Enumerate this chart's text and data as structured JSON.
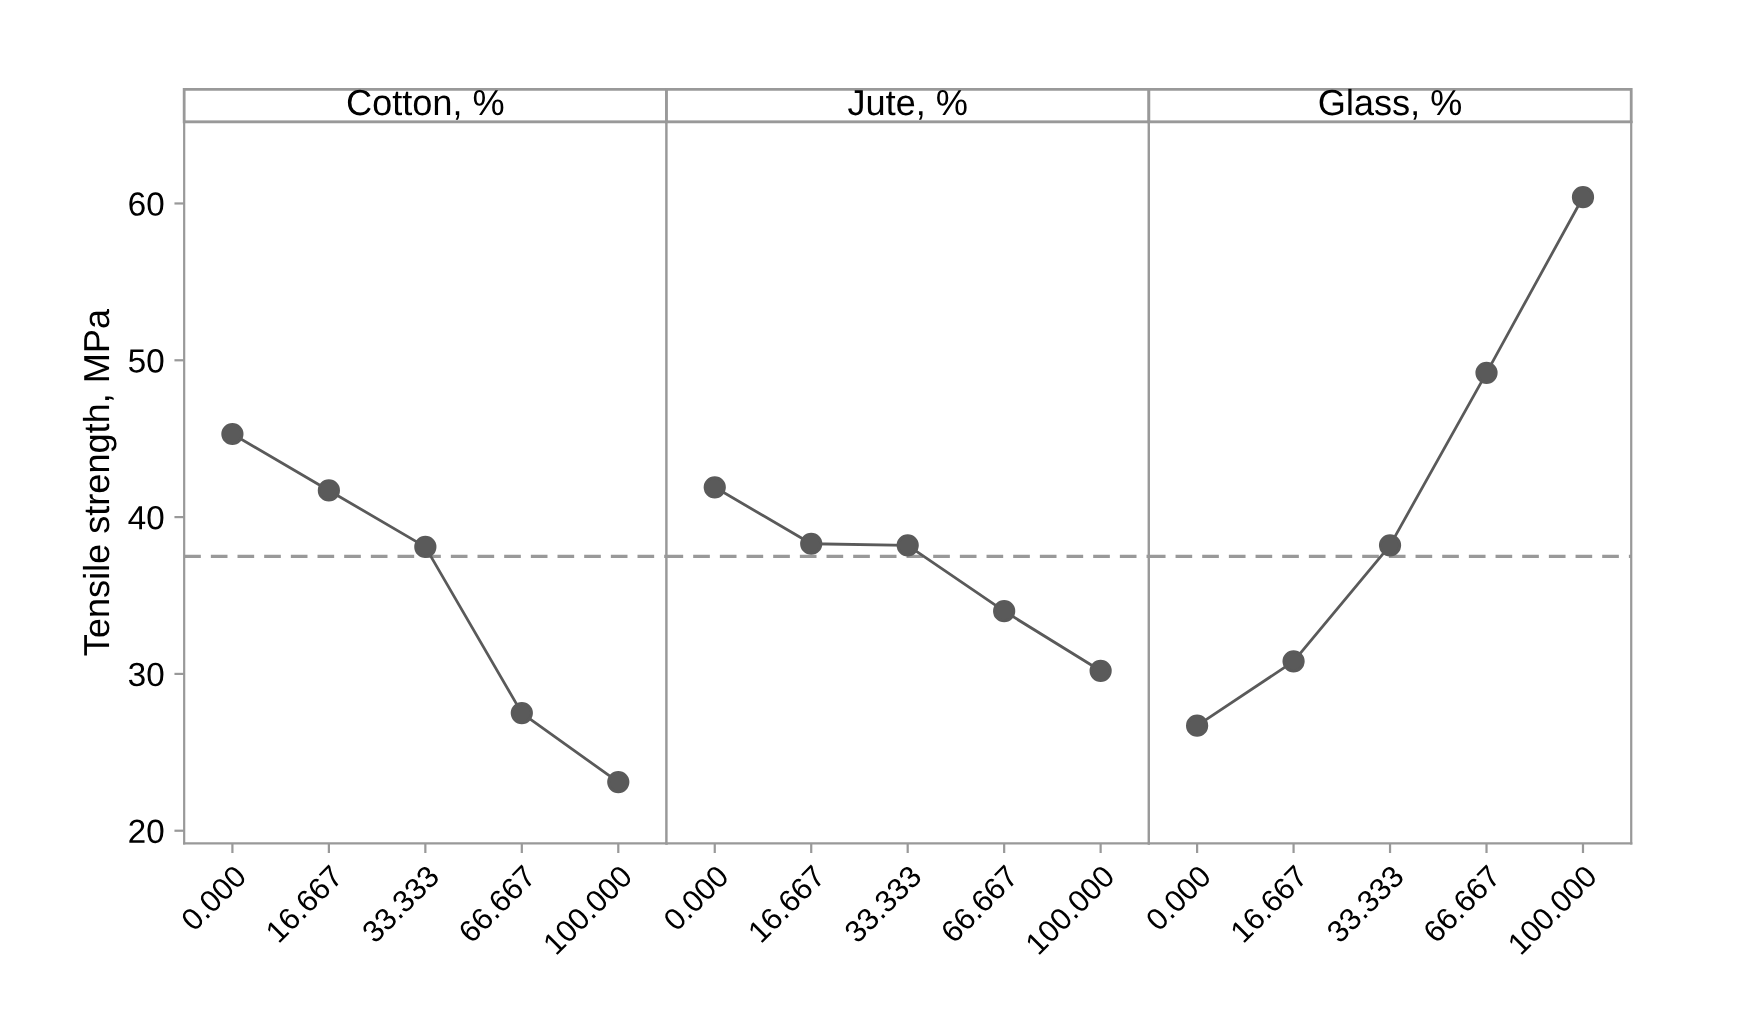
{
  "chart_data": [
    {
      "type": "line",
      "title": "Cotton, %",
      "ylabel": "Tensile strength, MPa",
      "categories": [
        "0.000",
        "16.667",
        "33.333",
        "66.667",
        "100.000"
      ],
      "values": [
        45.3,
        41.7,
        38.1,
        27.5,
        23.1
      ],
      "color": "#5a5a5a",
      "marker": "circle",
      "ylim": [
        19.2,
        65.2
      ],
      "yticks": [
        20,
        30,
        40,
        50,
        60
      ],
      "ref_lines": [
        {
          "axis": "y",
          "value": 37.5,
          "color": "#999999",
          "line_style": "dashed"
        }
      ],
      "grid": false
    },
    {
      "type": "line",
      "title": "Jute, %",
      "categories": [
        "0.000",
        "16.667",
        "33.333",
        "66.667",
        "100.000"
      ],
      "values": [
        41.9,
        38.3,
        38.2,
        34.0,
        30.2
      ],
      "color": "#5a5a5a",
      "marker": "circle",
      "ylim": [
        19.2,
        65.2
      ],
      "tick_labels": "x",
      "ref_lines": [
        {
          "axis": "y",
          "value": 37.5,
          "color": "#999999",
          "line_style": "dashed"
        }
      ],
      "grid": false
    },
    {
      "type": "line",
      "title": "Glass, %",
      "categories": [
        "0.000",
        "16.667",
        "33.333",
        "66.667",
        "100.000"
      ],
      "values": [
        26.7,
        30.8,
        38.2,
        49.2,
        60.4
      ],
      "color": "#5a5a5a",
      "marker": "circle",
      "ylim": [
        19.2,
        65.2
      ],
      "tick_labels": "x",
      "ref_lines": [
        {
          "axis": "y",
          "value": 37.5,
          "color": "#999999",
          "line_style": "dashed"
        }
      ],
      "grid": false
    }
  ]
}
